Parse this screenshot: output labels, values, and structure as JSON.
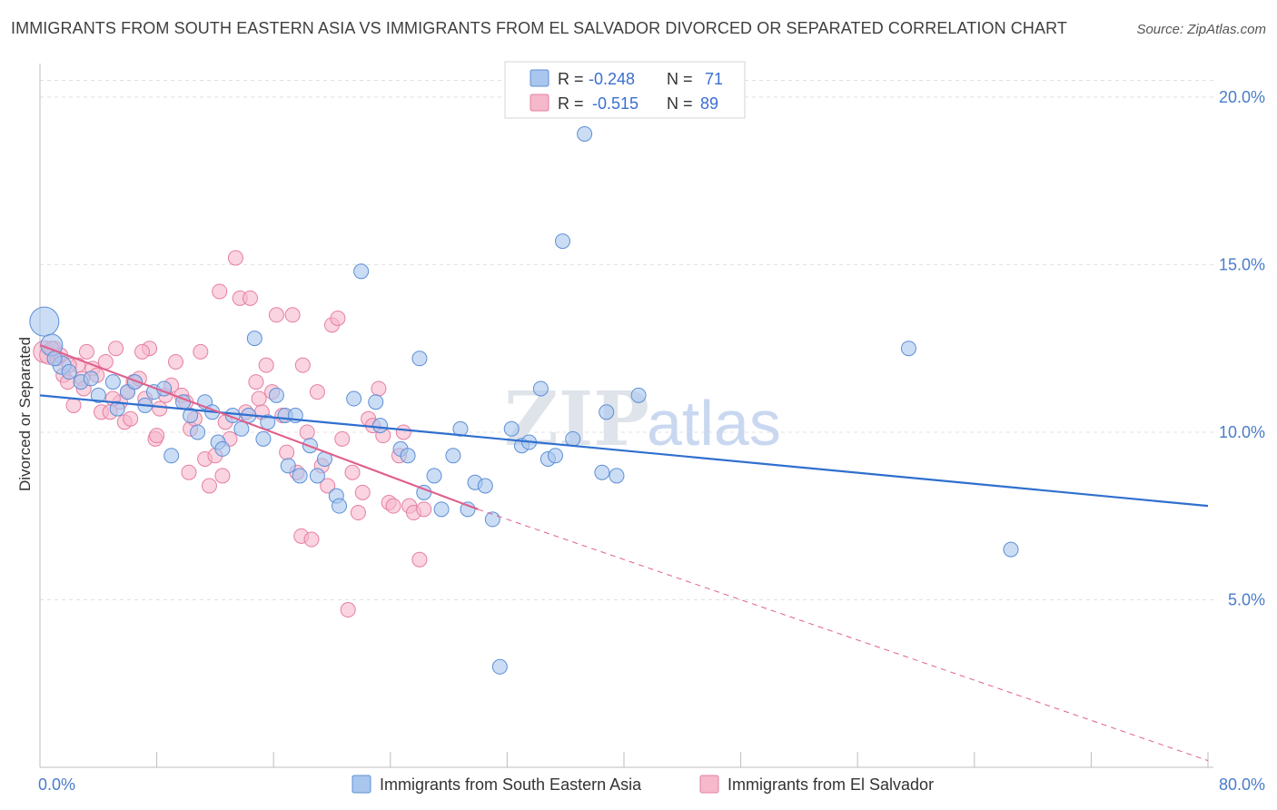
{
  "title": "IMMIGRANTS FROM SOUTH EASTERN ASIA VS IMMIGRANTS FROM EL SALVADOR DIVORCED OR SEPARATED CORRELATION CHART",
  "source": "Source: ZipAtlas.com",
  "watermark": {
    "zip": "ZIP",
    "atlas": "atlas"
  },
  "legend_top": [
    {
      "r_label": "R =",
      "r_value": "-0.248",
      "n_label": "N =",
      "n_value": "71"
    },
    {
      "r_label": "R =",
      "r_value": "-0.515",
      "n_label": "N =",
      "n_value": "89"
    }
  ],
  "colors": {
    "blue_fill": "#a9c6ee",
    "blue_stroke": "#5d8fd6",
    "blue_line": "#2f6fcf",
    "pink_fill": "#f6b8cb",
    "pink_stroke": "#e67fa0",
    "pink_line": "#e0608c",
    "grid": "#e0e0e0",
    "tick_text": "#4a7cc9"
  },
  "chart_data": {
    "type": "scatter",
    "title": "IMMIGRANTS FROM SOUTH EASTERN ASIA VS IMMIGRANTS FROM EL SALVADOR DIVORCED OR SEPARATED CORRELATION CHART",
    "xlabel": "",
    "ylabel": "Divorced or Separated",
    "xlim": [
      0,
      80
    ],
    "ylim": [
      0,
      21
    ],
    "x_tick_labels": [
      "0.0%",
      "80.0%"
    ],
    "y_ticks": [
      5,
      10,
      15,
      20
    ],
    "y_tick_labels": [
      "5.0%",
      "10.0%",
      "15.0%",
      "20.0%"
    ],
    "grid": true,
    "legend_position": "bottom",
    "series": [
      {
        "name": "Immigrants from South Eastern Asia",
        "r": -0.248,
        "n": 71,
        "trend": {
          "x": [
            0,
            80
          ],
          "y": [
            11.1,
            7.8
          ],
          "dashed_extension": false
        },
        "points": [
          [
            0.3,
            13.3,
            16
          ],
          [
            0.8,
            12.6,
            12
          ],
          [
            1.5,
            12.0,
            10
          ],
          [
            2.0,
            11.8,
            8
          ],
          [
            2.8,
            11.5,
            8
          ],
          [
            3.5,
            11.6,
            8
          ],
          [
            4.0,
            11.1,
            8
          ],
          [
            5.0,
            11.5,
            8
          ],
          [
            5.3,
            10.7,
            8
          ],
          [
            6.0,
            11.2,
            8
          ],
          [
            7.2,
            10.8,
            8
          ],
          [
            7.8,
            11.2,
            8
          ],
          [
            8.5,
            11.3,
            8
          ],
          [
            9.0,
            9.3,
            8
          ],
          [
            9.8,
            10.9,
            8
          ],
          [
            10.3,
            10.5,
            8
          ],
          [
            10.8,
            10.0,
            8
          ],
          [
            11.3,
            10.9,
            8
          ],
          [
            11.8,
            10.6,
            8
          ],
          [
            12.2,
            9.7,
            8
          ],
          [
            12.5,
            9.5,
            8
          ],
          [
            13.2,
            10.5,
            8
          ],
          [
            13.8,
            10.1,
            8
          ],
          [
            14.3,
            10.5,
            8
          ],
          [
            14.7,
            12.8,
            8
          ],
          [
            15.3,
            9.8,
            8
          ],
          [
            15.6,
            10.3,
            8
          ],
          [
            16.2,
            11.1,
            8
          ],
          [
            16.8,
            10.5,
            8
          ],
          [
            17.0,
            9.0,
            8
          ],
          [
            17.5,
            10.5,
            8
          ],
          [
            17.8,
            8.7,
            8
          ],
          [
            18.5,
            9.6,
            8
          ],
          [
            19.0,
            8.7,
            8
          ],
          [
            19.5,
            9.2,
            8
          ],
          [
            20.3,
            8.1,
            8
          ],
          [
            20.5,
            7.8,
            8
          ],
          [
            21.5,
            11.0,
            8
          ],
          [
            22.0,
            14.8,
            8
          ],
          [
            23.0,
            10.9,
            8
          ],
          [
            23.3,
            10.2,
            8
          ],
          [
            24.7,
            9.5,
            8
          ],
          [
            25.2,
            9.3,
            8
          ],
          [
            26.0,
            12.2,
            8
          ],
          [
            26.3,
            8.2,
            8
          ],
          [
            27.0,
            8.7,
            8
          ],
          [
            27.5,
            7.7,
            8
          ],
          [
            28.3,
            9.3,
            8
          ],
          [
            28.8,
            10.1,
            8
          ],
          [
            29.3,
            7.7,
            8
          ],
          [
            29.8,
            8.5,
            8
          ],
          [
            30.5,
            8.4,
            8
          ],
          [
            31.0,
            7.4,
            8
          ],
          [
            31.5,
            3.0,
            8
          ],
          [
            32.3,
            10.1,
            8
          ],
          [
            33.0,
            9.6,
            8
          ],
          [
            33.5,
            9.7,
            8
          ],
          [
            34.3,
            11.3,
            8
          ],
          [
            34.8,
            9.2,
            8
          ],
          [
            35.3,
            9.3,
            8
          ],
          [
            35.8,
            15.7,
            8
          ],
          [
            36.5,
            9.8,
            8
          ],
          [
            37.3,
            18.9,
            8
          ],
          [
            38.5,
            8.8,
            8
          ],
          [
            38.8,
            10.6,
            8
          ],
          [
            39.5,
            8.7,
            8
          ],
          [
            41.0,
            11.1,
            8
          ],
          [
            59.5,
            12.5,
            8
          ],
          [
            66.5,
            6.5,
            8
          ],
          [
            1.0,
            12.2,
            8
          ],
          [
            6.5,
            11.5,
            8
          ]
        ]
      },
      {
        "name": "Immigrants from El Salvador",
        "r": -0.515,
        "n": 89,
        "trend": {
          "x": [
            0,
            30
          ],
          "y": [
            12.6,
            7.7
          ],
          "dashed_extension": true,
          "dashed_to": [
            80,
            0.2
          ]
        },
        "points": [
          [
            0.3,
            12.4,
            12
          ],
          [
            0.6,
            12.3,
            10
          ],
          [
            1.0,
            12.5,
            8
          ],
          [
            1.2,
            12.2,
            8
          ],
          [
            1.6,
            11.7,
            8
          ],
          [
            1.9,
            11.5,
            8
          ],
          [
            2.3,
            10.8,
            8
          ],
          [
            2.6,
            12.0,
            8
          ],
          [
            2.9,
            11.6,
            8
          ],
          [
            3.2,
            12.4,
            8
          ],
          [
            3.6,
            11.9,
            8
          ],
          [
            3.9,
            11.7,
            8
          ],
          [
            4.2,
            10.6,
            8
          ],
          [
            4.5,
            12.1,
            8
          ],
          [
            4.8,
            10.6,
            8
          ],
          [
            5.2,
            12.5,
            8
          ],
          [
            5.5,
            10.9,
            8
          ],
          [
            5.8,
            10.3,
            8
          ],
          [
            6.0,
            11.2,
            8
          ],
          [
            6.4,
            11.5,
            8
          ],
          [
            6.8,
            11.6,
            8
          ],
          [
            7.2,
            11.0,
            8
          ],
          [
            7.5,
            12.5,
            8
          ],
          [
            7.9,
            9.8,
            8
          ],
          [
            8.2,
            10.7,
            8
          ],
          [
            8.6,
            11.1,
            8
          ],
          [
            9.0,
            11.4,
            8
          ],
          [
            9.3,
            12.1,
            8
          ],
          [
            9.7,
            11.1,
            8
          ],
          [
            10.0,
            10.9,
            8
          ],
          [
            10.3,
            10.1,
            8
          ],
          [
            10.6,
            10.4,
            8
          ],
          [
            11.0,
            12.4,
            8
          ],
          [
            11.3,
            9.2,
            8
          ],
          [
            11.6,
            8.4,
            8
          ],
          [
            12.0,
            9.3,
            8
          ],
          [
            12.3,
            14.2,
            8
          ],
          [
            12.7,
            10.3,
            8
          ],
          [
            13.0,
            9.8,
            8
          ],
          [
            13.4,
            15.2,
            8
          ],
          [
            13.7,
            14.0,
            8
          ],
          [
            14.1,
            10.6,
            8
          ],
          [
            14.4,
            14.0,
            8
          ],
          [
            14.8,
            11.5,
            8
          ],
          [
            15.2,
            10.6,
            8
          ],
          [
            15.5,
            12.0,
            8
          ],
          [
            15.9,
            11.2,
            8
          ],
          [
            16.2,
            13.5,
            8
          ],
          [
            16.6,
            10.5,
            8
          ],
          [
            16.9,
            9.4,
            8
          ],
          [
            17.3,
            13.5,
            8
          ],
          [
            17.6,
            8.8,
            8
          ],
          [
            17.9,
            6.9,
            8
          ],
          [
            18.3,
            10.0,
            8
          ],
          [
            18.6,
            6.8,
            8
          ],
          [
            19.0,
            11.2,
            8
          ],
          [
            19.3,
            9.0,
            8
          ],
          [
            19.7,
            8.4,
            8
          ],
          [
            20.0,
            13.2,
            8
          ],
          [
            20.4,
            13.4,
            8
          ],
          [
            20.7,
            9.8,
            8
          ],
          [
            21.1,
            4.7,
            8
          ],
          [
            21.4,
            8.8,
            8
          ],
          [
            21.8,
            7.6,
            8
          ],
          [
            22.1,
            8.2,
            8
          ],
          [
            22.5,
            10.4,
            8
          ],
          [
            22.8,
            10.2,
            8
          ],
          [
            23.2,
            11.3,
            8
          ],
          [
            23.5,
            9.9,
            8
          ],
          [
            23.9,
            7.9,
            8
          ],
          [
            24.2,
            7.8,
            8
          ],
          [
            24.6,
            9.3,
            8
          ],
          [
            24.9,
            10.0,
            8
          ],
          [
            25.3,
            7.8,
            8
          ],
          [
            25.6,
            7.6,
            8
          ],
          [
            26.0,
            6.2,
            8
          ],
          [
            26.3,
            7.7,
            8
          ],
          [
            10.2,
            8.8,
            8
          ],
          [
            12.5,
            8.7,
            8
          ],
          [
            15.0,
            11.0,
            8
          ],
          [
            18.0,
            12.0,
            8
          ],
          [
            8.0,
            9.9,
            8
          ],
          [
            6.2,
            10.4,
            8
          ],
          [
            3.0,
            11.3,
            8
          ],
          [
            2.0,
            12.0,
            8
          ],
          [
            1.4,
            12.3,
            8
          ],
          [
            0.8,
            12.5,
            8
          ],
          [
            5.0,
            11.0,
            8
          ],
          [
            7.0,
            12.4,
            8
          ]
        ]
      }
    ]
  },
  "legend_bottom": [
    {
      "label": "Immigrants from South Eastern Asia"
    },
    {
      "label": "Immigrants from El Salvador"
    }
  ]
}
